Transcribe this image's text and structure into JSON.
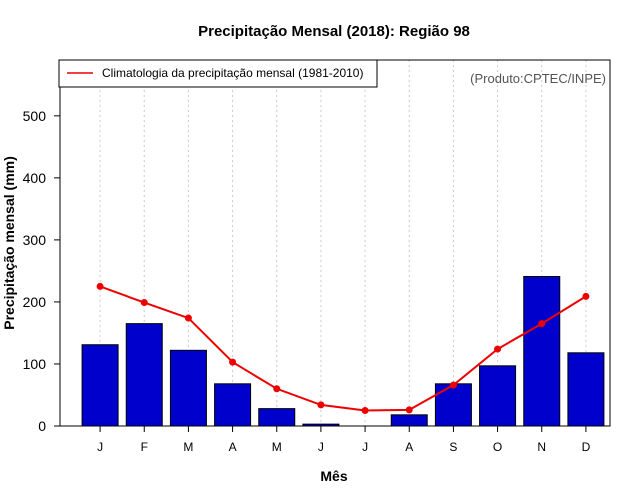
{
  "chart_data": {
    "type": "bar",
    "title": "Precipitação Mensal (2018): Região 98",
    "xlabel": "Mês",
    "ylabel": "Precipitação mensal (mm)",
    "categories": [
      "J",
      "F",
      "M",
      "A",
      "M",
      "J",
      "J",
      "A",
      "S",
      "O",
      "N",
      "D"
    ],
    "ylim": [
      0,
      590
    ],
    "yticks": [
      0,
      100,
      200,
      300,
      400,
      500
    ],
    "grid": "vertical dotted",
    "series": [
      {
        "name": "Precipitação mensal (2018)",
        "kind": "bar",
        "color": "#0000CC",
        "values": [
          131,
          165,
          122,
          68,
          28,
          3,
          0,
          18,
          68,
          97,
          241,
          118
        ]
      },
      {
        "name": "Climatologia da precipitação mensal (1981-2010)",
        "kind": "line",
        "color": "#EE0000",
        "values": [
          225,
          199,
          174,
          103,
          60,
          34,
          25,
          26,
          66,
          124,
          165,
          209
        ]
      }
    ],
    "legend": {
      "position": "top-left",
      "label": "Climatologia da precipitação mensal (1981-2010)"
    },
    "annotation": "(Produto:CPTEC/INPE)"
  }
}
